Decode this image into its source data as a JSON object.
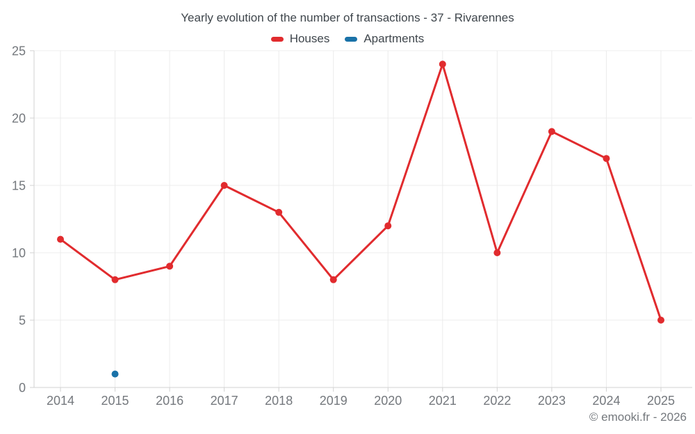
{
  "header": {
    "title": "Yearly evolution of the number of transactions - 37 - Rivarennes"
  },
  "legend": {
    "items": [
      {
        "label": "Houses",
        "color": "#e12b2e"
      },
      {
        "label": "Apartments",
        "color": "#1a72a8"
      }
    ]
  },
  "footer": {
    "copyright": "© emooki.fr - 2026"
  },
  "chart_data": {
    "type": "line",
    "title": "Yearly evolution of the number of transactions - 37 - Rivarennes",
    "categories": [
      "2014",
      "2015",
      "2016",
      "2017",
      "2018",
      "2019",
      "2020",
      "2021",
      "2022",
      "2023",
      "2024",
      "2025"
    ],
    "series": [
      {
        "name": "Houses",
        "color": "#e12b2e",
        "values": [
          11,
          8,
          9,
          15,
          13,
          8,
          12,
          24,
          10,
          19,
          17,
          5
        ]
      },
      {
        "name": "Apartments",
        "color": "#1a72a8",
        "values": [
          null,
          1,
          null,
          null,
          null,
          null,
          null,
          null,
          null,
          null,
          null,
          null
        ]
      }
    ],
    "xlabel": "",
    "ylabel": "",
    "ylim": [
      0,
      25
    ],
    "yticks": [
      0,
      5,
      10,
      15,
      20,
      25
    ],
    "grid": true,
    "legend_position": "top"
  }
}
